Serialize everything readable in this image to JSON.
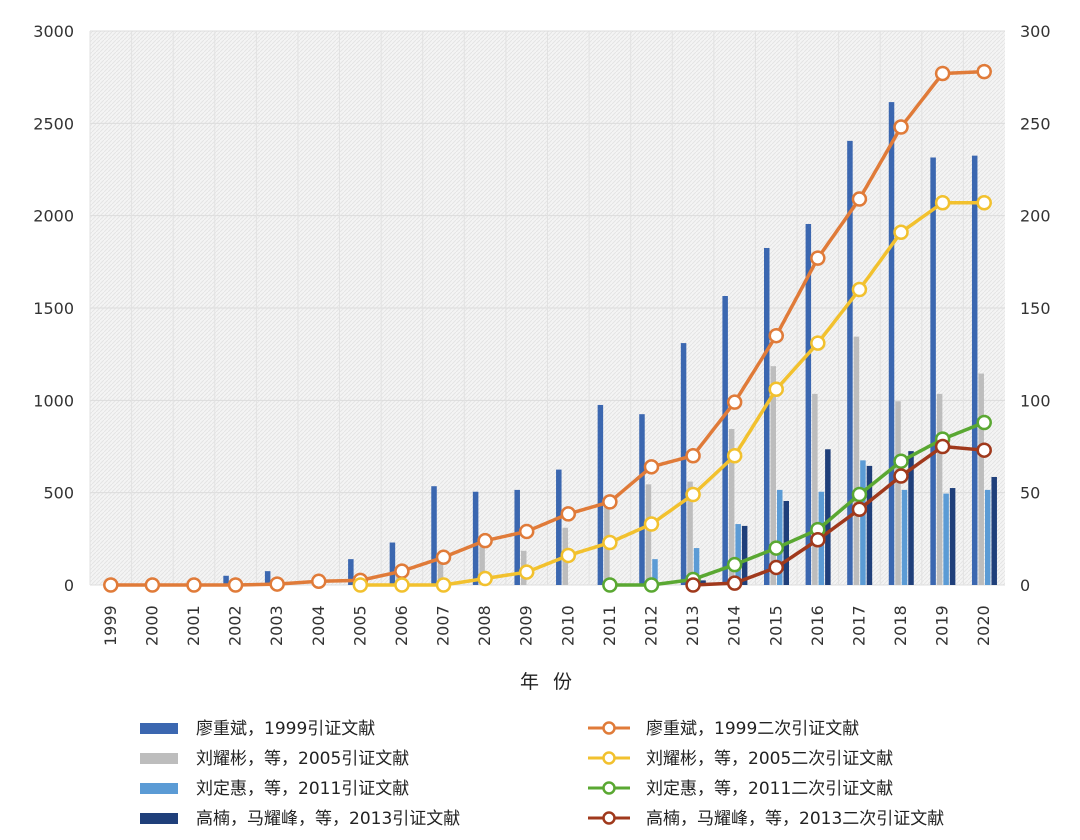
{
  "chart_data": {
    "type": "bar+line",
    "xlabel": "年 份",
    "categories": [
      "1999",
      "2000",
      "2001",
      "2002",
      "2003",
      "2004",
      "2005",
      "2006",
      "2007",
      "2008",
      "2009",
      "2010",
      "2011",
      "2012",
      "2013",
      "2014",
      "2015",
      "2016",
      "2017",
      "2018",
      "2019",
      "2020"
    ],
    "ylim_left": [
      0,
      3000
    ],
    "yticks_left": [
      0,
      500,
      1000,
      1500,
      2000,
      2500,
      3000
    ],
    "ylim_right": [
      0,
      300
    ],
    "yticks_right": [
      0,
      50,
      100,
      150,
      200,
      250,
      300
    ],
    "bar_series": [
      {
        "name": "廖重斌，1999引证文献",
        "color": "#3b67b0",
        "values": [
          0,
          0,
          0,
          50,
          75,
          0,
          140,
          230,
          535,
          505,
          515,
          625,
          975,
          925,
          1310,
          1565,
          1825,
          1955,
          2405,
          2615,
          2315,
          2325
        ]
      },
      {
        "name": "刘耀彬，等，2005引证文献",
        "color": "#bdbdbd",
        "values": [
          null,
          null,
          null,
          null,
          null,
          null,
          0,
          80,
          120,
          210,
          185,
          310,
          440,
          545,
          560,
          845,
          1185,
          1035,
          1345,
          995,
          1035,
          1145
        ]
      },
      {
        "name": "刘定惠，等，2011引证文献",
        "color": "#5b9bd5",
        "values": [
          null,
          null,
          null,
          null,
          null,
          null,
          null,
          null,
          null,
          null,
          null,
          null,
          0,
          140,
          200,
          330,
          515,
          505,
          675,
          515,
          495,
          515
        ]
      },
      {
        "name": "高楠，马耀峰，等，2013引证文献",
        "color": "#1f3f7a",
        "values": [
          null,
          null,
          null,
          null,
          null,
          null,
          null,
          null,
          null,
          null,
          null,
          null,
          null,
          null,
          25,
          320,
          455,
          735,
          645,
          725,
          525,
          585
        ]
      }
    ],
    "line_series": [
      {
        "name": "廖重斌，1999二次引证文献",
        "color": "#e07b39",
        "values": [
          0,
          0,
          0,
          0,
          0.5,
          2,
          2.5,
          7.5,
          15,
          24,
          29,
          38.5,
          45,
          64,
          70,
          99,
          135,
          177,
          209,
          248,
          277,
          278
        ]
      },
      {
        "name": "刘耀彬，等，2005二次引证文献",
        "color": "#f2c12e",
        "values": [
          null,
          null,
          null,
          null,
          null,
          null,
          0,
          0,
          0,
          3.5,
          7,
          16,
          23,
          33,
          49,
          70,
          106,
          131,
          160,
          191,
          207,
          207
        ]
      },
      {
        "name": "刘定惠，等，2011二次引证文献",
        "color": "#5aa832",
        "values": [
          null,
          null,
          null,
          null,
          null,
          null,
          null,
          null,
          null,
          null,
          null,
          null,
          0,
          0,
          3,
          11,
          20,
          30,
          49,
          67,
          79,
          88
        ]
      },
      {
        "name": "高楠，马耀峰，等，2013二次引证文献",
        "color": "#a0391c",
        "values": [
          null,
          null,
          null,
          null,
          null,
          null,
          null,
          null,
          null,
          null,
          null,
          null,
          null,
          null,
          0,
          1,
          9.5,
          24.5,
          41,
          59,
          75,
          73
        ]
      }
    ]
  }
}
